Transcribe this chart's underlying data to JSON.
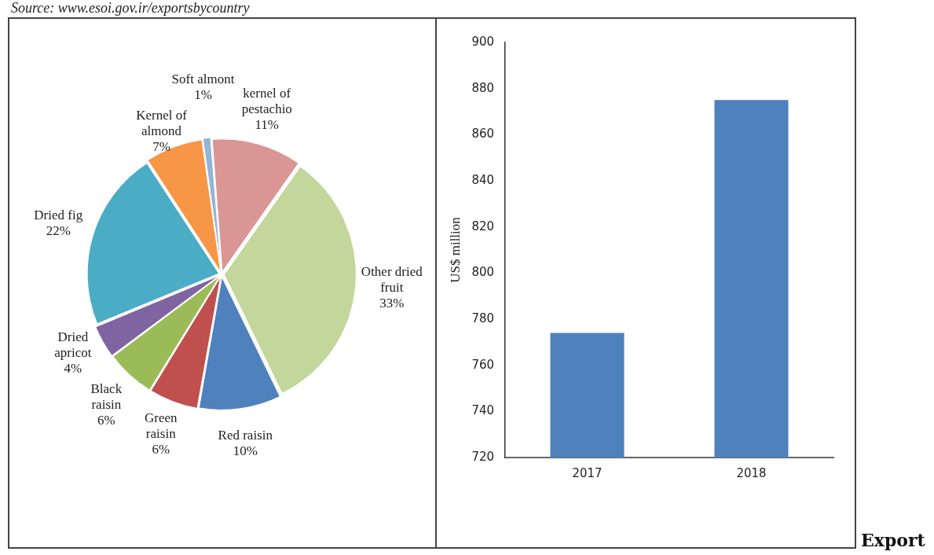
{
  "chart_data": [
    {
      "type": "pie",
      "categories": [
        "Soft almont",
        "kernel of pestachio",
        "Other dried fruit",
        "Red raisin",
        "Green raisin",
        "Black raisin",
        "Dried apricot",
        "Dried fig",
        "Kernel of almond"
      ],
      "values": [
        1,
        11,
        33,
        10,
        6,
        6,
        4,
        22,
        7
      ],
      "value_labels": [
        "1%",
        "11%",
        "33%",
        "10%",
        "6%",
        "6%",
        "4%",
        "22%",
        "7%"
      ],
      "colors": [
        "#95b3d7",
        "#d99694",
        "#c3d69b",
        "#4f81bd",
        "#c0504d",
        "#9bbb59",
        "#8064a2",
        "#4bacc6",
        "#f79646"
      ],
      "legend": false,
      "annotations": [
        "Source: www.esoi.gov.ir/exportsbycountry"
      ]
    },
    {
      "type": "bar",
      "categories": [
        "2017",
        "2018"
      ],
      "values": [
        774,
        875
      ],
      "color": "#4f81bd",
      "ylabel": "US$ million",
      "ylim": [
        720,
        900
      ],
      "yticks": [
        720,
        740,
        760,
        780,
        800,
        820,
        840,
        860,
        880,
        900
      ],
      "grid": false,
      "legend": false,
      "annotations": [
        "Export"
      ]
    }
  ]
}
